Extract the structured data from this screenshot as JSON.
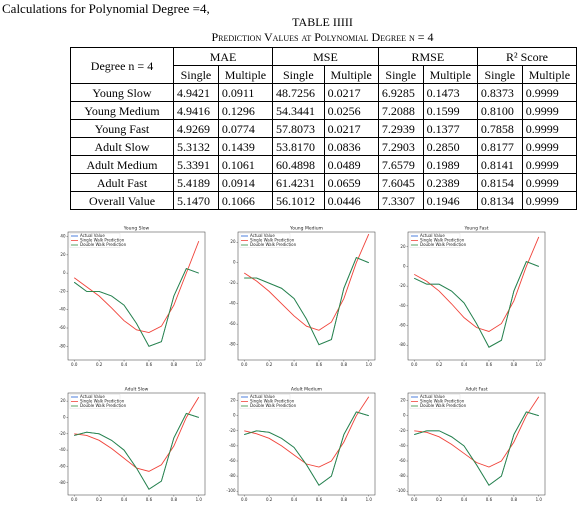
{
  "header": {
    "intro": "Calculations for Polynomial Degree =4,",
    "table_title": "TABLE IIIII",
    "table_subtitle": "Prediction Values at Polynomial Degree n = 4"
  },
  "table": {
    "stub_header": "Degree n = 4",
    "groups": [
      "MAE",
      "MSE",
      "RMSE",
      "R² Score"
    ],
    "subheaders": [
      "Single",
      "Multiple",
      "Single",
      "Multiple",
      "Single",
      "Multiple",
      "Single",
      "Multiple"
    ],
    "rows": [
      [
        "Young Slow",
        "4.9421",
        "0.0911",
        "48.7256",
        "0.0217",
        "6.9285",
        "0.1473",
        "0.8373",
        "0.9999"
      ],
      [
        "Young Medium",
        "4.9416",
        "0.1296",
        "54.3441",
        "0.0256",
        "7.2088",
        "0.1599",
        "0.8100",
        "0.9999"
      ],
      [
        "Young Fast",
        "4.9269",
        "0.0774",
        "57.8073",
        "0.0217",
        "7.2939",
        "0.1377",
        "0.7858",
        "0.9999"
      ],
      [
        "Adult Slow",
        "5.3132",
        "0.1439",
        "53.8170",
        "0.0836",
        "7.2903",
        "0.2850",
        "0.8177",
        "0.9999"
      ],
      [
        "Adult Medium",
        "5.3391",
        "0.1061",
        "60.4898",
        "0.0489",
        "7.6579",
        "0.1989",
        "0.8141",
        "0.9999"
      ],
      [
        "Adult Fast",
        "5.4189",
        "0.0914",
        "61.4231",
        "0.0659",
        "7.6045",
        "0.2389",
        "0.8154",
        "0.9999"
      ],
      [
        "Overall Value",
        "5.1470",
        "0.1066",
        "56.1012",
        "0.0446",
        "7.3307",
        "0.1946",
        "0.8134",
        "0.9999"
      ]
    ]
  },
  "plots": [
    {
      "title": "Young Slow",
      "xlim": [
        -0.05,
        1.05
      ],
      "ylim": [
        -95,
        45
      ],
      "xticks": [
        {
          "value": 0,
          "label": "0.0"
        },
        {
          "value": 0.2,
          "label": "0.2"
        },
        {
          "value": 0.4,
          "label": "0.4"
        },
        {
          "value": 0.6,
          "label": "0.6"
        },
        {
          "value": 0.8,
          "label": "0.8"
        },
        {
          "value": 1,
          "label": "1.0"
        }
      ],
      "yticks": [
        40,
        20,
        0,
        -20,
        -40,
        -60,
        -80
      ],
      "x": [
        0,
        0.1,
        0.2,
        0.3,
        0.4,
        0.5,
        0.6,
        0.7,
        0.8,
        0.9,
        1
      ],
      "series": [
        {
          "name": "Actual Value",
          "color": "#1f5fd6",
          "values": [
            -10,
            -20,
            -20,
            -25,
            -35,
            -55,
            -80,
            -75,
            -25,
            5,
            0
          ]
        },
        {
          "name": "Single Walk Prediction",
          "color": "#f0433a",
          "values": [
            -5,
            -15,
            -25,
            -38,
            -52,
            -62,
            -65,
            -58,
            -35,
            0,
            35
          ]
        },
        {
          "name": "Double Walk Prediction",
          "color": "#2e8b3e",
          "values": [
            -10,
            -20,
            -20,
            -25,
            -35,
            -55,
            -80,
            -75,
            -25,
            5,
            0
          ]
        }
      ]
    },
    {
      "title": "Young Medium",
      "xlim": [
        -0.05,
        1.05
      ],
      "ylim": [
        -95,
        30
      ],
      "xticks": [
        {
          "value": 0,
          "label": "0.0"
        },
        {
          "value": 0.2,
          "label": "0.2"
        },
        {
          "value": 0.4,
          "label": "0.4"
        },
        {
          "value": 0.6,
          "label": "0.6"
        },
        {
          "value": 0.8,
          "label": "0.8"
        },
        {
          "value": 1,
          "label": "1.0"
        }
      ],
      "yticks": [
        20,
        0,
        -20,
        -40,
        -60,
        -80
      ],
      "x": [
        0,
        0.1,
        0.2,
        0.3,
        0.4,
        0.5,
        0.6,
        0.7,
        0.8,
        0.9,
        1
      ],
      "series": [
        {
          "name": "Actual Value",
          "color": "#1f5fd6",
          "values": [
            -15,
            -15,
            -20,
            -25,
            -35,
            -55,
            -80,
            -75,
            -25,
            5,
            0
          ]
        },
        {
          "name": "Single Walk Prediction",
          "color": "#f0433a",
          "values": [
            -10,
            -18,
            -28,
            -40,
            -52,
            -62,
            -66,
            -58,
            -35,
            0,
            28
          ]
        },
        {
          "name": "Double Walk Prediction",
          "color": "#2e8b3e",
          "values": [
            -15,
            -15,
            -20,
            -25,
            -35,
            -55,
            -80,
            -75,
            -25,
            5,
            0
          ]
        }
      ]
    },
    {
      "title": "Young Fast",
      "xlim": [
        -0.05,
        1.05
      ],
      "ylim": [
        -95,
        35
      ],
      "xticks": [
        {
          "value": 0,
          "label": "0.0"
        },
        {
          "value": 0.2,
          "label": "0.2"
        },
        {
          "value": 0.4,
          "label": "0.4"
        },
        {
          "value": 0.6,
          "label": "0.6"
        },
        {
          "value": 0.8,
          "label": "0.8"
        },
        {
          "value": 1,
          "label": "1.0"
        }
      ],
      "yticks": [
        20,
        0,
        -20,
        -40,
        -60,
        -80
      ],
      "x": [
        0,
        0.1,
        0.2,
        0.3,
        0.4,
        0.5,
        0.6,
        0.7,
        0.8,
        0.9,
        1
      ],
      "series": [
        {
          "name": "Actual Value",
          "color": "#1f5fd6",
          "values": [
            -12,
            -18,
            -18,
            -25,
            -37,
            -58,
            -82,
            -75,
            -25,
            5,
            0
          ]
        },
        {
          "name": "Single Walk Prediction",
          "color": "#f0433a",
          "values": [
            -8,
            -15,
            -25,
            -38,
            -52,
            -62,
            -66,
            -58,
            -35,
            0,
            30
          ]
        },
        {
          "name": "Double Walk Prediction",
          "color": "#2e8b3e",
          "values": [
            -12,
            -18,
            -18,
            -25,
            -37,
            -58,
            -82,
            -75,
            -25,
            5,
            0
          ]
        }
      ]
    },
    {
      "title": "Adult Slow",
      "xlim": [
        -0.05,
        1.05
      ],
      "ylim": [
        -95,
        30
      ],
      "xticks": [
        {
          "value": 0,
          "label": "0.0"
        },
        {
          "value": 0.2,
          "label": "0.2"
        },
        {
          "value": 0.4,
          "label": "0.4"
        },
        {
          "value": 0.6,
          "label": "0.6"
        },
        {
          "value": 0.8,
          "label": "0.8"
        },
        {
          "value": 1,
          "label": "1.0"
        }
      ],
      "yticks": [
        20,
        0,
        -20,
        -40,
        -60,
        -80
      ],
      "x": [
        0,
        0.1,
        0.2,
        0.3,
        0.4,
        0.5,
        0.6,
        0.7,
        0.8,
        0.9,
        1
      ],
      "series": [
        {
          "name": "Actual Value",
          "color": "#1f5fd6",
          "values": [
            -22,
            -18,
            -20,
            -28,
            -40,
            -62,
            -88,
            -78,
            -25,
            5,
            0
          ]
        },
        {
          "name": "Single Walk Prediction",
          "color": "#f0433a",
          "values": [
            -20,
            -22,
            -28,
            -38,
            -50,
            -62,
            -66,
            -58,
            -35,
            0,
            25
          ]
        },
        {
          "name": "Double Walk Prediction",
          "color": "#2e8b3e",
          "values": [
            -22,
            -18,
            -20,
            -28,
            -40,
            -62,
            -88,
            -78,
            -25,
            5,
            0
          ]
        }
      ]
    },
    {
      "title": "Adult Medium",
      "xlim": [
        -0.05,
        1.05
      ],
      "ylim": [
        -105,
        30
      ],
      "xticks": [
        {
          "value": 0,
          "label": "0.0"
        },
        {
          "value": 0.2,
          "label": "0.2"
        },
        {
          "value": 0.4,
          "label": "0.4"
        },
        {
          "value": 0.6,
          "label": "0.6"
        },
        {
          "value": 0.8,
          "label": "0.8"
        },
        {
          "value": 1,
          "label": "1.0"
        }
      ],
      "yticks": [
        20,
        0,
        -20,
        -40,
        -60,
        -80,
        -100
      ],
      "x": [
        0,
        0.1,
        0.2,
        0.3,
        0.4,
        0.5,
        0.6,
        0.7,
        0.8,
        0.9,
        1
      ],
      "series": [
        {
          "name": "Actual Value",
          "color": "#1f5fd6",
          "values": [
            -25,
            -20,
            -22,
            -30,
            -42,
            -65,
            -92,
            -80,
            -25,
            5,
            0
          ]
        },
        {
          "name": "Single Walk Prediction",
          "color": "#f0433a",
          "values": [
            -20,
            -24,
            -30,
            -40,
            -52,
            -64,
            -68,
            -60,
            -35,
            0,
            25
          ]
        },
        {
          "name": "Double Walk Prediction",
          "color": "#2e8b3e",
          "values": [
            -25,
            -20,
            -22,
            -30,
            -42,
            -65,
            -92,
            -80,
            -25,
            5,
            0
          ]
        }
      ]
    },
    {
      "title": "Adult Fast",
      "xlim": [
        -0.05,
        1.05
      ],
      "ylim": [
        -105,
        30
      ],
      "xticks": [
        {
          "value": 0,
          "label": "0.0"
        },
        {
          "value": 0.2,
          "label": "0.2"
        },
        {
          "value": 0.4,
          "label": "0.4"
        },
        {
          "value": 0.6,
          "label": "0.6"
        },
        {
          "value": 0.8,
          "label": "0.8"
        },
        {
          "value": 1,
          "label": "1.0"
        }
      ],
      "yticks": [
        20,
        0,
        -20,
        -40,
        -60,
        -80,
        -100
      ],
      "x": [
        0,
        0.1,
        0.2,
        0.3,
        0.4,
        0.5,
        0.6,
        0.7,
        0.8,
        0.9,
        1
      ],
      "series": [
        {
          "name": "Actual Value",
          "color": "#1f5fd6",
          "values": [
            -25,
            -20,
            -20,
            -28,
            -40,
            -65,
            -92,
            -80,
            -25,
            5,
            0
          ]
        },
        {
          "name": "Single Walk Prediction",
          "color": "#f0433a",
          "values": [
            -20,
            -22,
            -28,
            -38,
            -50,
            -62,
            -68,
            -60,
            -35,
            0,
            25
          ]
        },
        {
          "name": "Double Walk Prediction",
          "color": "#2e8b3e",
          "values": [
            -25,
            -20,
            -20,
            -28,
            -40,
            -65,
            -92,
            -80,
            -25,
            5,
            0
          ]
        }
      ]
    }
  ]
}
